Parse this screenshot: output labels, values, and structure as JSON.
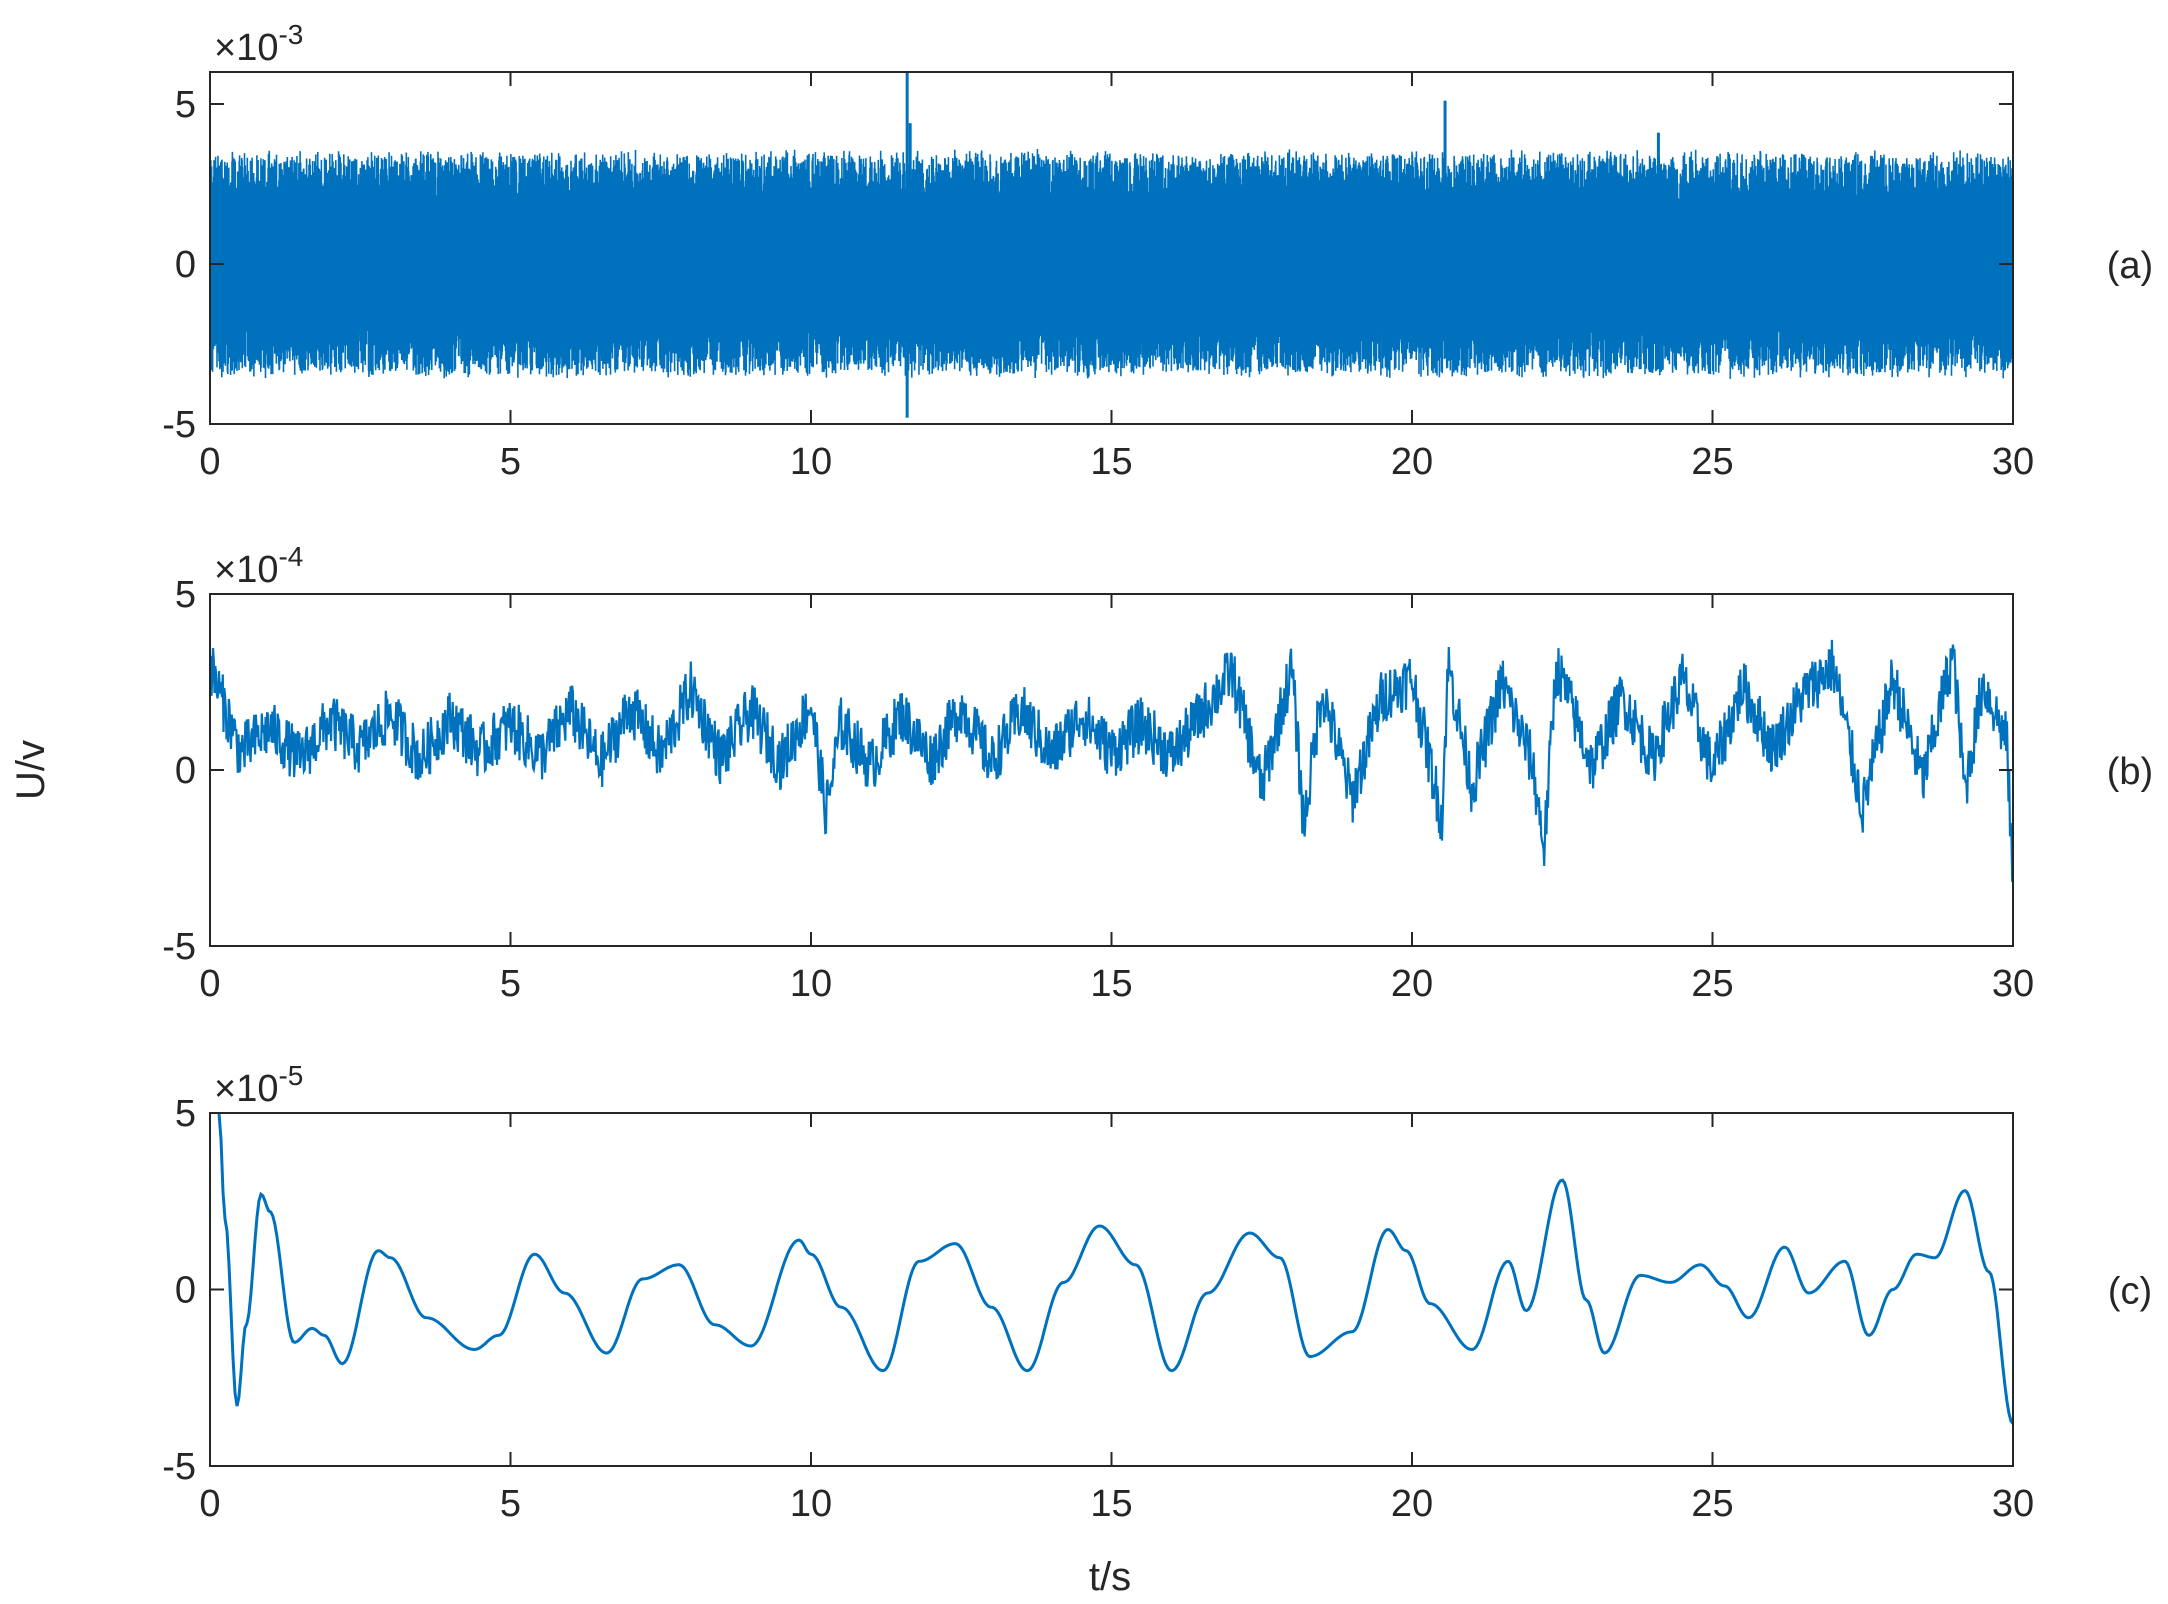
{
  "figure": {
    "ylabel": "U/v",
    "xlabel": "t/s",
    "line_color": "#0072BD"
  },
  "chart_data": [
    {
      "type": "line",
      "panel_label": "(a)",
      "exponent_label": "×10",
      "exponent": "-3",
      "scale": 0.001,
      "xlim": [
        0,
        30
      ],
      "ylim": [
        -5,
        6
      ],
      "x_ticks": [
        "0",
        "5",
        "10",
        "15",
        "20",
        "25",
        "30"
      ],
      "y_ticks": [
        "-5",
        "0",
        "5"
      ],
      "y_tick_values": [
        -5,
        0,
        5
      ],
      "description": "dense high-frequency signal, envelope about ±3.5, occasional spikes",
      "envelope": [
        -3.6,
        3.6
      ],
      "spikes": [
        {
          "x": 11.6,
          "y": 6.0
        },
        {
          "x": 11.6,
          "y": -4.8
        },
        {
          "x": 11.65,
          "y": 4.4
        },
        {
          "x": 20.55,
          "y": 5.1
        },
        {
          "x": 24.1,
          "y": 4.1
        }
      ]
    },
    {
      "type": "line",
      "panel_label": "(b)",
      "exponent_label": "×10",
      "exponent": "-4",
      "scale": 0.0001,
      "xlim": [
        0,
        30
      ],
      "ylim": [
        -5,
        5
      ],
      "x_ticks": [
        "0",
        "5",
        "10",
        "15",
        "20",
        "25",
        "30"
      ],
      "y_ticks": [
        "-5",
        "0",
        "5"
      ],
      "y_tick_values": [
        -5,
        0,
        5
      ],
      "x": [
        0,
        0.5,
        1,
        1.5,
        2,
        2.5,
        3,
        3.5,
        4,
        4.5,
        5,
        5.5,
        6,
        6.5,
        7,
        7.5,
        8,
        8.5,
        9,
        9.5,
        10,
        10.25,
        10.5,
        11,
        11.5,
        12,
        12.5,
        13,
        13.5,
        14,
        14.5,
        15,
        15.5,
        16,
        16.5,
        17,
        17.5,
        18,
        18.2,
        18.5,
        19,
        19.5,
        20,
        20.5,
        20.6,
        21,
        21.5,
        22,
        22.2,
        22.4,
        23,
        23.5,
        24,
        24.5,
        25,
        25.5,
        26,
        26.5,
        27,
        27.5,
        28,
        28.5,
        29,
        29.2,
        29.5,
        29.9,
        30
      ],
      "y": [
        3.0,
        0.5,
        1.2,
        0.3,
        1.4,
        0.6,
        1.6,
        0.3,
        1.5,
        0.5,
        1.3,
        0.4,
        1.7,
        0.2,
        1.8,
        0.4,
        2.3,
        0.3,
        1.7,
        0.2,
        1.9,
        -1.2,
        1.3,
        0.1,
        1.6,
        0.3,
        1.8,
        0.2,
        1.7,
        0.4,
        1.6,
        0.5,
        1.3,
        0.4,
        1.6,
        2.8,
        -0.5,
        2.9,
        -1.6,
        2.3,
        -0.8,
        2.1,
        2.6,
        -1.4,
        3.0,
        -0.5,
        2.5,
        0.2,
        -2.2,
        3.0,
        0.1,
        2.1,
        0.3,
        2.6,
        0.0,
        2.4,
        0.6,
        2.1,
        3.0,
        -1.1,
        2.6,
        -0.3,
        3.3,
        -0.6,
        2.5,
        0.8,
        -3.4
      ]
    },
    {
      "type": "line",
      "panel_label": "(c)",
      "exponent_label": "×10",
      "exponent": "-5",
      "scale": 1e-05,
      "xlim": [
        0,
        30
      ],
      "ylim": [
        -5,
        5
      ],
      "x_ticks": [
        "0",
        "5",
        "10",
        "15",
        "20",
        "25",
        "30"
      ],
      "y_ticks": [
        "-5",
        "0",
        "5"
      ],
      "y_tick_values": [
        -5,
        0,
        5
      ],
      "x": [
        0.15,
        0.25,
        0.45,
        0.6,
        0.85,
        1.0,
        1.4,
        1.7,
        1.9,
        2.2,
        2.8,
        3.0,
        3.6,
        4.4,
        4.8,
        5.4,
        5.9,
        6.6,
        7.2,
        7.8,
        8.4,
        9.0,
        9.8,
        10.0,
        10.5,
        11.2,
        11.8,
        12.4,
        13.0,
        13.6,
        14.2,
        14.8,
        15.4,
        16.0,
        16.6,
        17.3,
        17.8,
        18.3,
        19.0,
        19.6,
        19.9,
        20.3,
        21.0,
        21.6,
        21.9,
        22.5,
        22.9,
        23.2,
        23.8,
        24.3,
        24.8,
        25.2,
        25.6,
        26.2,
        26.6,
        27.2,
        27.6,
        28.0,
        28.4,
        28.7,
        29.2,
        29.6,
        30.0
      ],
      "y": [
        5.0,
        2.0,
        -3.3,
        -1.0,
        2.7,
        2.2,
        -1.5,
        -1.1,
        -1.3,
        -2.1,
        1.1,
        0.9,
        -0.8,
        -1.7,
        -1.3,
        1.0,
        -0.1,
        -1.8,
        0.3,
        0.7,
        -1.0,
        -1.6,
        1.4,
        1.0,
        -0.5,
        -2.3,
        0.8,
        1.3,
        -0.5,
        -2.3,
        0.2,
        1.8,
        0.7,
        -2.3,
        -0.1,
        1.6,
        0.9,
        -1.9,
        -1.2,
        1.7,
        1.1,
        -0.4,
        -1.7,
        0.8,
        -0.6,
        3.1,
        -0.3,
        -1.8,
        0.4,
        0.2,
        0.7,
        0.1,
        -0.8,
        1.2,
        -0.1,
        0.8,
        -1.3,
        0.0,
        1.0,
        0.9,
        2.8,
        0.5,
        -3.8
      ]
    }
  ]
}
